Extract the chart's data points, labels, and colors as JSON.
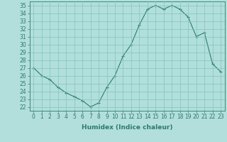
{
  "x": [
    0,
    1,
    2,
    3,
    4,
    5,
    6,
    7,
    8,
    9,
    10,
    11,
    12,
    13,
    14,
    15,
    16,
    17,
    18,
    19,
    20,
    21,
    22,
    23
  ],
  "y": [
    27,
    26,
    25.5,
    24.5,
    23.8,
    23.3,
    22.8,
    22.0,
    22.5,
    24.5,
    26,
    28.5,
    30,
    32.5,
    34.5,
    35,
    34.5,
    35,
    34.5,
    33.5,
    31,
    31.5,
    27.5,
    26.5
  ],
  "line_color": "#2d7a6a",
  "marker": "+",
  "bg_color": "#b2dfdb",
  "grid_color": "#80c4bc",
  "xlabel": "Humidex (Indice chaleur)",
  "ylabel": "",
  "xlim": [
    -0.5,
    23.5
  ],
  "ylim": [
    21.5,
    35.5
  ],
  "yticks": [
    22,
    23,
    24,
    25,
    26,
    27,
    28,
    29,
    30,
    31,
    32,
    33,
    34,
    35
  ],
  "xticks": [
    0,
    1,
    2,
    3,
    4,
    5,
    6,
    7,
    8,
    9,
    10,
    11,
    12,
    13,
    14,
    15,
    16,
    17,
    18,
    19,
    20,
    21,
    22,
    23
  ],
  "xlabel_fontsize": 6.5,
  "tick_fontsize": 5.5,
  "marker_size": 3,
  "line_width": 0.8
}
